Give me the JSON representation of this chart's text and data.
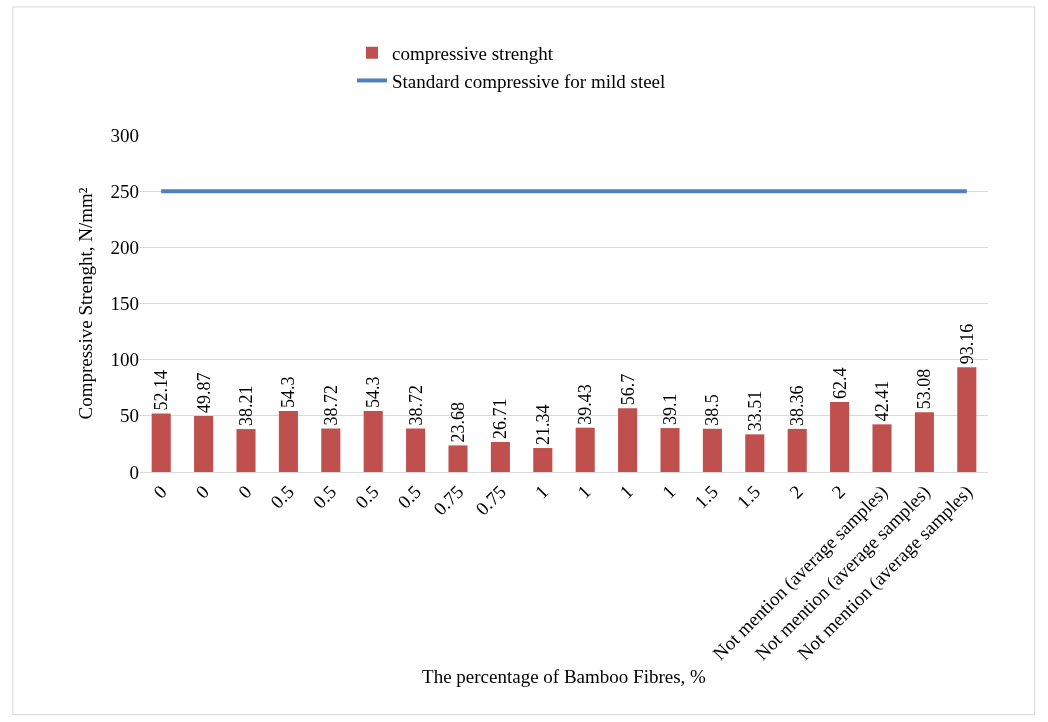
{
  "chart_data": {
    "type": "bar",
    "xlabel": "The percentage of Bamboo Fibres, %",
    "ylabel": "Compressive Strenght, N/mm²",
    "categories": [
      "0",
      "0",
      "0",
      "0.5",
      "0.5",
      "0.5",
      "0.5",
      "0.75",
      "0.75",
      "1",
      "1",
      "1",
      "1",
      "1.5",
      "1.5",
      "2",
      "2",
      "Not mention (average samples)",
      "Not mention (average samples)",
      "Not mention (average samples)"
    ],
    "series": [
      {
        "name": "compressive strenght",
        "color": "#c0504d",
        "values": [
          52.14,
          49.87,
          38.21,
          54.3,
          38.72,
          54.3,
          38.72,
          23.68,
          26.71,
          21.34,
          39.43,
          56.7,
          39.1,
          38.5,
          33.51,
          38.36,
          62.4,
          42.41,
          53.08,
          93.16
        ],
        "value_labels": [
          "52.14",
          "49.87",
          "38.21",
          "54.3",
          "38.72",
          "54.3",
          "38.72",
          "23.68",
          "26.71",
          "21.34",
          "39.43",
          "56.7",
          "39.1",
          "38.5",
          "33.51",
          "38.36",
          "62.4",
          "42.41",
          "53.08",
          "93.16"
        ]
      },
      {
        "name": "Standard compressive for mild steel",
        "color": "#4f81bd",
        "type": "line",
        "values": [
          250,
          250,
          250,
          250,
          250,
          250,
          250,
          250,
          250,
          250,
          250,
          250,
          250,
          250,
          250,
          250,
          250,
          250,
          250,
          250
        ]
      }
    ],
    "ylim": [
      0,
      300
    ],
    "yticks": [
      0,
      50,
      100,
      150,
      200,
      250,
      300
    ],
    "grid": "y",
    "legend": "top",
    "marker": "none",
    "line_style": "solid"
  }
}
